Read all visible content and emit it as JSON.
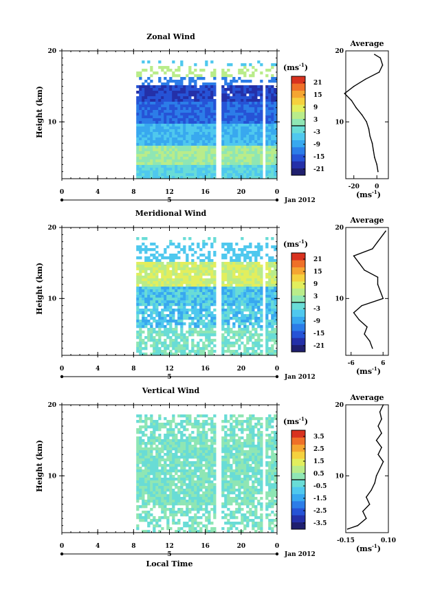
{
  "chart_data": [
    {
      "type": "heatmap",
      "title": "Zonal Wind",
      "ylabel": "Height (km)",
      "ylim": [
        2,
        20
      ],
      "xlim": [
        0,
        24
      ],
      "x_ticks": [
        "0",
        "4",
        "8",
        "12",
        "16",
        "20",
        "0"
      ],
      "y_ticks": [
        "20",
        "10"
      ],
      "date_label": "5",
      "month_label": "Jan 2012",
      "colorbar": {
        "unit": "(ms",
        "unit_sup": "-1",
        "unit_close": ")",
        "ticks": [
          "21",
          "15",
          "9",
          "3",
          "-3",
          "-9",
          "-15",
          "-21"
        ],
        "range": [
          -24,
          24
        ]
      },
      "profile": {
        "title": "Average",
        "xlabel": "(ms",
        "xlabel_sup": "-1",
        "xlabel_close": ")",
        "x_ticks": [
          "-20",
          "0"
        ],
        "xlim": [
          -27,
          10
        ],
        "y_ticks": [
          "20",
          "10"
        ],
        "heights": [
          3,
          4,
          5,
          6,
          7,
          8,
          9,
          10,
          11,
          12,
          13,
          14,
          15,
          16,
          17,
          18,
          19,
          19.5
        ],
        "values": [
          1,
          0,
          -2,
          -3,
          -4,
          -6,
          -7,
          -9,
          -13,
          -18,
          -22,
          -28,
          -20,
          -10,
          2,
          5,
          3,
          -2
        ]
      }
    },
    {
      "type": "heatmap",
      "title": "Meridional Wind",
      "ylabel": "Height (km)",
      "ylim": [
        2,
        20
      ],
      "xlim": [
        0,
        24
      ],
      "x_ticks": [
        "0",
        "4",
        "8",
        "12",
        "16",
        "20",
        "0"
      ],
      "y_ticks": [
        "20",
        "10"
      ],
      "date_label": "5",
      "month_label": "Jan 2012",
      "colorbar": {
        "unit": "(ms",
        "unit_sup": "-1",
        "unit_close": ")",
        "ticks": [
          "21",
          "15",
          "9",
          "3",
          "-3",
          "-9",
          "-15",
          "-21"
        ],
        "range": [
          -24,
          24
        ]
      },
      "profile": {
        "title": "Average",
        "xlabel": "(ms",
        "xlabel_sup": "-1",
        "xlabel_close": ")",
        "x_ticks": [
          "-6",
          "6"
        ],
        "xlim": [
          -8,
          8
        ],
        "y_ticks": [
          "20",
          "10"
        ],
        "heights": [
          3,
          4,
          5,
          6,
          7,
          8,
          9,
          10,
          11,
          12,
          13,
          14,
          15,
          16,
          17,
          18,
          19,
          19.5
        ],
        "values": [
          2,
          1,
          -1,
          0,
          -3,
          -5,
          -2,
          6,
          5,
          4,
          4,
          -1,
          -3,
          -5,
          2,
          4,
          6,
          7
        ]
      }
    },
    {
      "type": "heatmap",
      "title": "Vertical Wind",
      "ylabel": "Height (km)",
      "xlabel": "Local Time",
      "ylim": [
        2,
        20
      ],
      "xlim": [
        0,
        24
      ],
      "x_ticks": [
        "0",
        "4",
        "8",
        "12",
        "16",
        "20",
        "0"
      ],
      "y_ticks": [
        "20",
        "10"
      ],
      "date_label": "5",
      "month_label": "Jan 2012",
      "colorbar": {
        "unit": "(ms",
        "unit_sup": "-1",
        "unit_close": ")",
        "ticks": [
          "3.5",
          "2.5",
          "1.5",
          "0.5",
          "-0.5",
          "-1.5",
          "-2.5",
          "-3.5"
        ],
        "range": [
          -4,
          4
        ]
      },
      "profile": {
        "title": "Average",
        "xlabel": "(ms",
        "xlabel_sup": "-1",
        "xlabel_close": ")",
        "x_ticks": [
          "-0.15",
          "0.10"
        ],
        "xlim": [
          -0.15,
          0.1
        ],
        "y_ticks": [
          "20",
          "10"
        ],
        "heights": [
          2.5,
          3,
          4,
          5,
          6,
          7,
          8,
          9,
          10,
          11,
          12,
          13,
          14,
          15,
          16,
          17,
          18,
          19,
          20
        ],
        "values": [
          -0.14,
          -0.08,
          -0.03,
          -0.05,
          -0.01,
          -0.03,
          0.0,
          0.02,
          0.03,
          0.05,
          0.07,
          0.04,
          0.06,
          0.03,
          0.06,
          0.04,
          0.06,
          0.05,
          0.07
        ]
      }
    }
  ]
}
